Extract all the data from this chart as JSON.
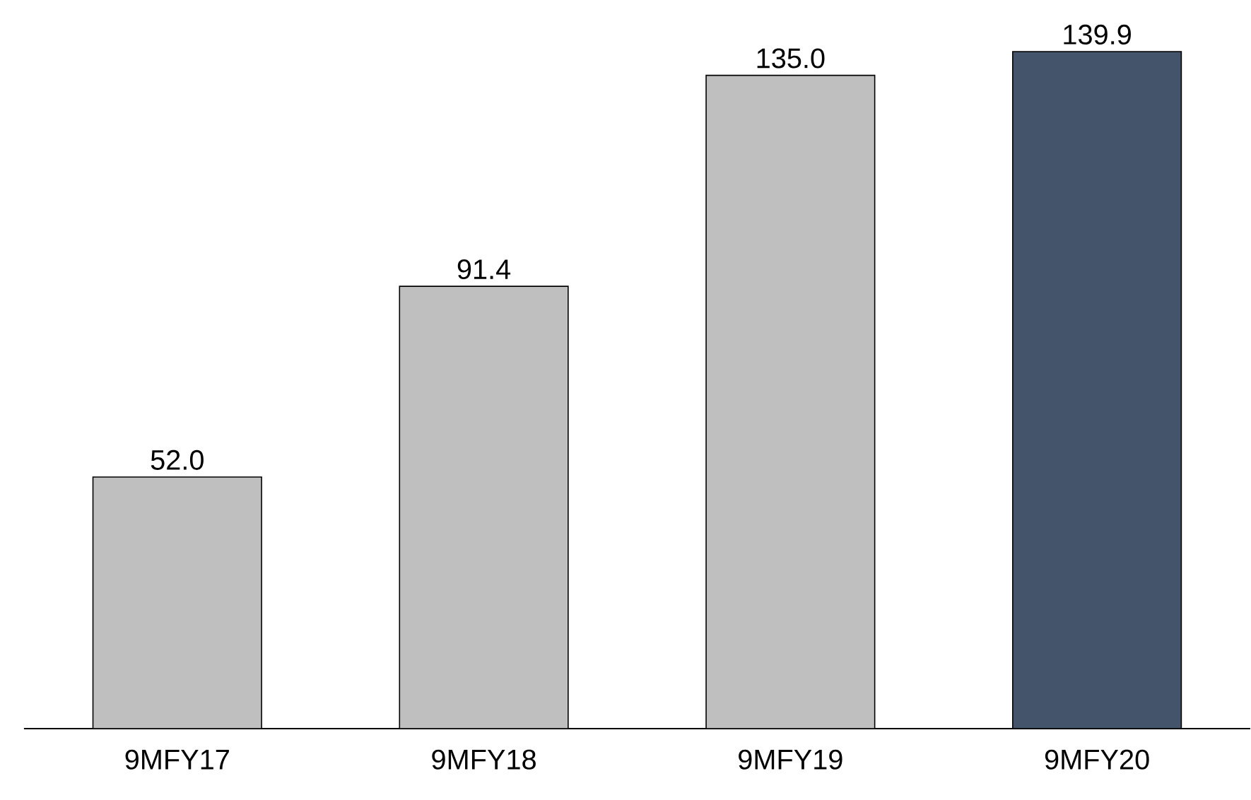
{
  "chart_data": {
    "type": "bar",
    "categories": [
      "9MFY17",
      "9MFY18",
      "9MFY19",
      "9MFY20"
    ],
    "values": [
      52.0,
      91.4,
      135.0,
      139.9
    ],
    "value_labels": [
      "52.0",
      "91.4",
      "135.0",
      "139.9"
    ],
    "colors": [
      "#bfbfbf",
      "#bfbfbf",
      "#bfbfbf",
      "#44546a"
    ]
  }
}
